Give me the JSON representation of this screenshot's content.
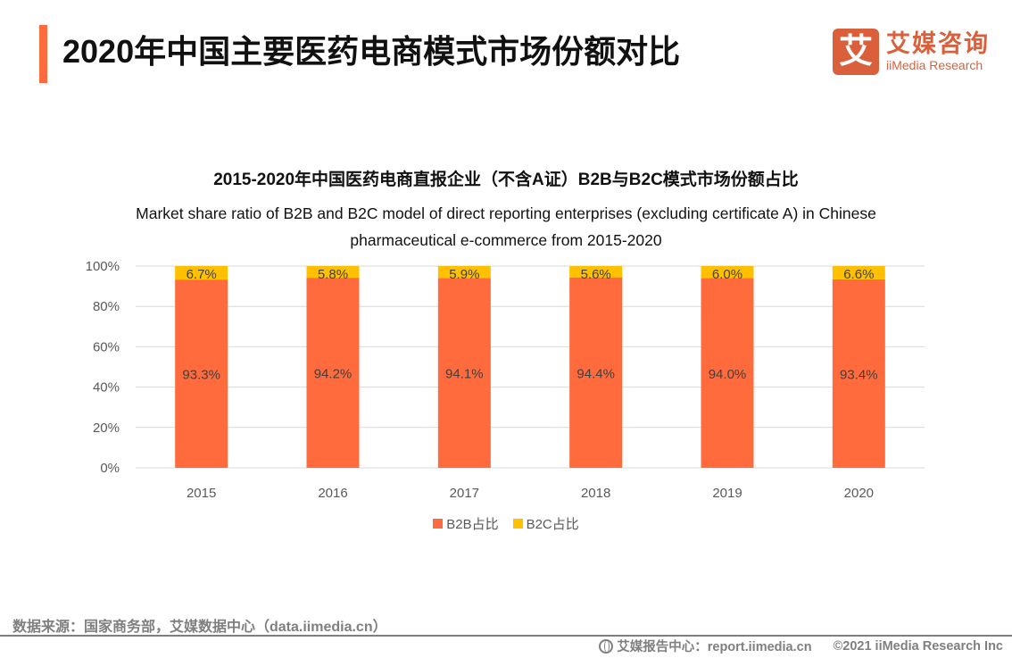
{
  "header": {
    "title": "2020年中国主要医药电商模式市场份额对比",
    "accent_color": "#ff6b3d"
  },
  "logo": {
    "glyph": "艾",
    "name_cn": "艾媒咨询",
    "name_en": "iiMedia Research",
    "color": "#d9603b"
  },
  "chart_data": {
    "type": "bar",
    "stacked": true,
    "title": "2015-2020年中国医药电商直报企业（不含A证）B2B与B2C模式市场份额占比",
    "subtitle_line1": "Market share ratio of B2B and B2C model of direct reporting enterprises (excluding certificate A) in Chinese",
    "subtitle_line2": "pharmaceutical e-commerce from 2015-2020",
    "categories": [
      "2015",
      "2016",
      "2017",
      "2018",
      "2019",
      "2020"
    ],
    "series": [
      {
        "name": "B2B占比",
        "color": "#ff6b3d",
        "values": [
          93.3,
          94.2,
          94.1,
          94.4,
          94.0,
          93.4
        ],
        "labels": [
          "93.3%",
          "94.2%",
          "94.1%",
          "94.4%",
          "94.0%",
          "93.4%"
        ]
      },
      {
        "name": "B2C占比",
        "color": "#ffc000",
        "values": [
          6.7,
          5.8,
          5.9,
          5.6,
          6.0,
          6.6
        ],
        "labels": [
          "6.7%",
          "5.8%",
          "5.9%",
          "5.6%",
          "6.0%",
          "6.6%"
        ]
      }
    ],
    "yticks": [
      "0%",
      "20%",
      "40%",
      "60%",
      "80%",
      "100%"
    ],
    "ylim": [
      0,
      100
    ],
    "xlabel": "",
    "ylabel": "",
    "grid": true,
    "legend_position": "bottom"
  },
  "footer": {
    "source": "数据来源：国家商务部，艾媒数据中心（data.iimedia.cn）",
    "report_center": "艾媒报告中心：report.iimedia.cn",
    "copyright": "©2021  iiMedia Research  Inc"
  }
}
